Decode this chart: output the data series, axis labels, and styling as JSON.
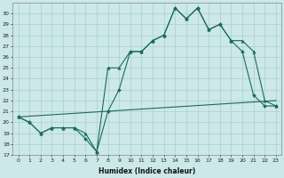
{
  "xlabel": "Humidex (Indice chaleur)",
  "ylabel": "",
  "bg_color": "#cce8e8",
  "grid_color": "#aacfcf",
  "line_color": "#1a6b5a",
  "xlim": [
    -0.5,
    23.5
  ],
  "ylim": [
    17,
    31
  ],
  "yticks": [
    17,
    18,
    19,
    20,
    21,
    22,
    23,
    24,
    25,
    26,
    27,
    28,
    29,
    30
  ],
  "xticks": [
    0,
    1,
    2,
    3,
    4,
    5,
    6,
    7,
    8,
    9,
    10,
    11,
    12,
    13,
    14,
    15,
    16,
    17,
    18,
    19,
    20,
    21,
    22,
    23
  ],
  "line1_x": [
    0,
    1,
    2,
    3,
    4,
    5,
    6,
    7,
    8,
    9,
    10,
    11,
    12,
    13,
    14,
    15,
    16,
    17,
    18,
    19,
    20,
    21,
    22,
    23
  ],
  "line1_y": [
    20.5,
    20.0,
    19.0,
    19.5,
    19.5,
    19.5,
    18.5,
    17.3,
    21.0,
    23.0,
    26.5,
    26.5,
    27.5,
    28.0,
    30.5,
    29.5,
    30.5,
    28.5,
    29.0,
    27.5,
    26.5,
    22.5,
    21.5,
    21.5
  ],
  "line2_x": [
    0,
    1,
    2,
    3,
    4,
    5,
    6,
    7,
    8,
    9,
    10,
    11,
    12,
    13,
    14,
    15,
    16,
    17,
    18,
    19,
    20,
    21,
    22,
    23
  ],
  "line2_y": [
    20.5,
    20.0,
    19.0,
    19.5,
    19.5,
    19.5,
    19.0,
    17.3,
    25.0,
    25.0,
    26.5,
    26.5,
    27.5,
    28.0,
    30.5,
    29.5,
    30.5,
    28.5,
    29.0,
    27.5,
    27.5,
    26.5,
    22.0,
    21.5
  ],
  "line3_x": [
    0,
    23
  ],
  "line3_y": [
    20.5,
    22.0
  ]
}
